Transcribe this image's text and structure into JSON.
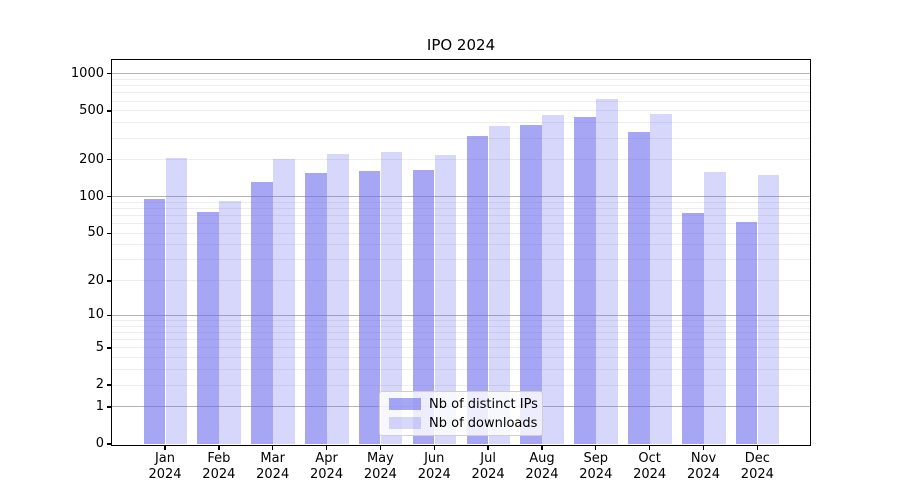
{
  "chart_data": {
    "type": "bar",
    "title": "IPO 2024",
    "categories": [
      "Jan 2024",
      "Feb 2024",
      "Mar 2024",
      "Apr 2024",
      "May 2024",
      "Jun 2024",
      "Jul 2024",
      "Aug 2024",
      "Sep 2024",
      "Oct 2024",
      "Nov 2024",
      "Dec 2024"
    ],
    "series": [
      {
        "name": "Nb of distinct IPs",
        "color": "rgba(102,102,238,0.58)",
        "values": [
          95,
          75,
          133,
          157,
          163,
          165,
          310,
          385,
          447,
          338,
          74,
          62
        ]
      },
      {
        "name": "Nb of downloads",
        "color": "rgba(102,102,238,0.26)",
        "values": [
          205,
          93,
          203,
          224,
          230,
          220,
          375,
          465,
          625,
          468,
          160,
          150
        ]
      }
    ],
    "xlabel": "",
    "ylabel": "",
    "yscale": "log1p",
    "ylim": [
      0,
      1300
    ],
    "yticks": [
      0,
      1,
      2,
      5,
      10,
      20,
      50,
      100,
      200,
      500,
      1000
    ],
    "major_grid_values": [
      1,
      10,
      100,
      1000
    ],
    "minor_grid_values": [
      2,
      3,
      4,
      5,
      6,
      7,
      8,
      9,
      20,
      30,
      40,
      50,
      60,
      70,
      80,
      90,
      200,
      300,
      400,
      500,
      600,
      700,
      800,
      900
    ],
    "grid": "both",
    "legend": {
      "position": "lower center",
      "frame": true
    },
    "colors": {
      "major_grid": "#b3b3b3",
      "minor_grid": "#ededed",
      "axis": "#000000",
      "text": "#000000",
      "background": "#ffffff"
    }
  }
}
